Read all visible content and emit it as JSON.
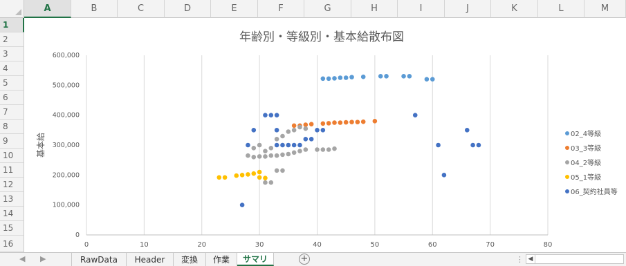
{
  "columns": [
    "A",
    "B",
    "C",
    "D",
    "E",
    "F",
    "G",
    "H",
    "I",
    "J",
    "K",
    "L",
    "M"
  ],
  "rows": [
    "1",
    "2",
    "3",
    "4",
    "5",
    "6",
    "7",
    "8",
    "9",
    "10",
    "11",
    "12",
    "13",
    "14",
    "15",
    "16"
  ],
  "active_cell": {
    "column": "A",
    "row": "1"
  },
  "sheet_tabs": [
    {
      "label": "RawData",
      "active": false
    },
    {
      "label": "Header",
      "active": false
    },
    {
      "label": "変換",
      "active": false
    },
    {
      "label": "作業",
      "active": false
    },
    {
      "label": "サマリ",
      "active": true
    }
  ],
  "icons": {
    "add_sheet": "plus-circle-icon",
    "nav_prev": "triangle-left-icon",
    "nav_next": "triangle-right-icon",
    "split": "vertical-dots-icon"
  },
  "chart_data": {
    "type": "scatter",
    "title": "年齢別・等級別・基本給散布図",
    "xlabel": "",
    "ylabel": "基本給",
    "xlim": [
      0,
      80
    ],
    "ylim": [
      0,
      600000
    ],
    "x_ticks": [
      "0",
      "10",
      "20",
      "30",
      "40",
      "50",
      "60",
      "70",
      "80"
    ],
    "y_ticks": [
      "0",
      "100,000",
      "200,000",
      "300,000",
      "400,000",
      "500,000",
      "600,000"
    ],
    "grid": "vertical",
    "legend_position": "right",
    "series": [
      {
        "name": "02_4等級",
        "color": "#5b9bd5",
        "points": [
          [
            41,
            522000
          ],
          [
            42,
            522000
          ],
          [
            43,
            523000
          ],
          [
            44,
            525000
          ],
          [
            45,
            525000
          ],
          [
            46,
            527000
          ],
          [
            48,
            528000
          ],
          [
            51,
            530000
          ],
          [
            52,
            530000
          ],
          [
            55,
            530000
          ],
          [
            56,
            530000
          ],
          [
            59,
            520000
          ],
          [
            60,
            520000
          ]
        ]
      },
      {
        "name": "03_3等級",
        "color": "#ed7d31",
        "points": [
          [
            36,
            365000
          ],
          [
            37,
            365000
          ],
          [
            38,
            368000
          ],
          [
            39,
            370000
          ],
          [
            41,
            372000
          ],
          [
            42,
            373000
          ],
          [
            43,
            375000
          ],
          [
            44,
            375000
          ],
          [
            45,
            376000
          ],
          [
            46,
            377000
          ],
          [
            47,
            377000
          ],
          [
            48,
            378000
          ],
          [
            50,
            380000
          ]
        ]
      },
      {
        "name": "04_2等級",
        "color": "#a5a5a5",
        "points": [
          [
            28,
            265000
          ],
          [
            29,
            260000
          ],
          [
            29,
            290000
          ],
          [
            30,
            262000
          ],
          [
            30,
            300000
          ],
          [
            31,
            262000
          ],
          [
            31,
            280000
          ],
          [
            32,
            265000
          ],
          [
            32,
            290000
          ],
          [
            33,
            265000
          ],
          [
            33,
            320000
          ],
          [
            34,
            268000
          ],
          [
            34,
            330000
          ],
          [
            35,
            270000
          ],
          [
            35,
            345000
          ],
          [
            36,
            275000
          ],
          [
            36,
            350000
          ],
          [
            37,
            280000
          ],
          [
            37,
            360000
          ],
          [
            38,
            285000
          ],
          [
            38,
            355000
          ],
          [
            40,
            285000
          ],
          [
            41,
            285000
          ],
          [
            42,
            285000
          ],
          [
            43,
            288000
          ],
          [
            31,
            175000
          ],
          [
            32,
            175000
          ],
          [
            33,
            215000
          ],
          [
            34,
            215000
          ]
        ]
      },
      {
        "name": "05_1等級",
        "color": "#ffc000",
        "points": [
          [
            23,
            192000
          ],
          [
            24,
            192000
          ],
          [
            26,
            198000
          ],
          [
            27,
            200000
          ],
          [
            28,
            202000
          ],
          [
            29,
            205000
          ],
          [
            30,
            210000
          ],
          [
            30,
            192000
          ],
          [
            31,
            190000
          ]
        ]
      },
      {
        "name": "06_契約社員等",
        "color": "#4472c4",
        "points": [
          [
            27,
            100000
          ],
          [
            28,
            300000
          ],
          [
            29,
            350000
          ],
          [
            31,
            400000
          ],
          [
            32,
            400000
          ],
          [
            33,
            400000
          ],
          [
            33,
            350000
          ],
          [
            33,
            300000
          ],
          [
            34,
            300000
          ],
          [
            35,
            300000
          ],
          [
            36,
            300000
          ],
          [
            37,
            300000
          ],
          [
            38,
            320000
          ],
          [
            39,
            320000
          ],
          [
            40,
            350000
          ],
          [
            41,
            350000
          ],
          [
            57,
            400000
          ],
          [
            61,
            300000
          ],
          [
            62,
            200000
          ],
          [
            66,
            350000
          ],
          [
            67,
            300000
          ],
          [
            68,
            300000
          ]
        ]
      }
    ]
  }
}
